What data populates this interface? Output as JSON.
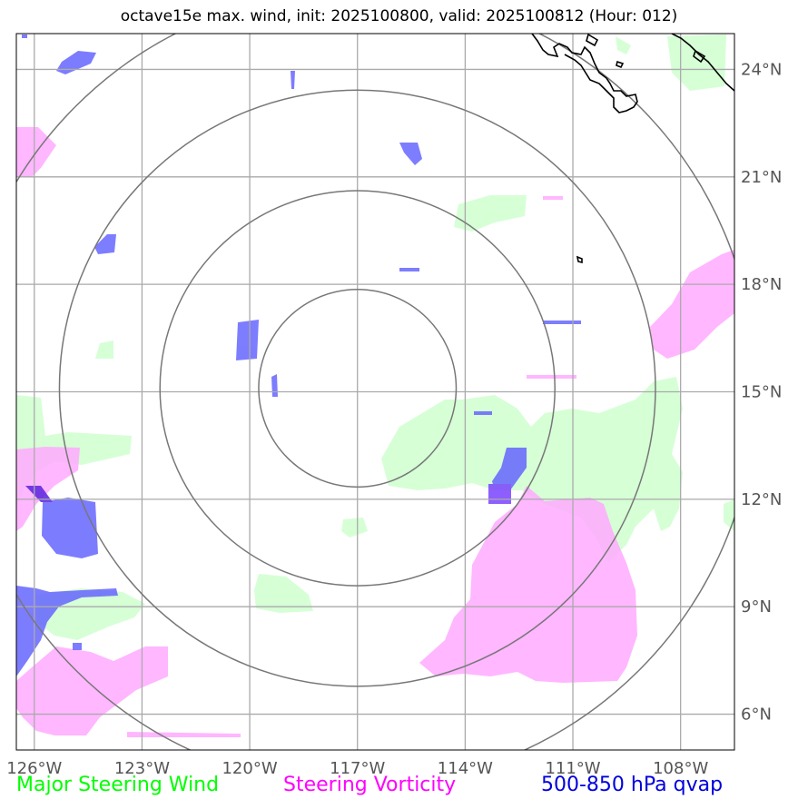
{
  "title": "octave15e max. wind, init: 2025100800, valid: 2025100812 (Hour: 012)",
  "map": {
    "lon_range": [
      -126.5,
      -106.5
    ],
    "lat_range": [
      5.0,
      25.0
    ],
    "center": {
      "lon": -117.0,
      "lat": 15.1
    },
    "range_rings_deg": [
      2.75,
      5.5,
      8.3,
      11.1
    ],
    "lon_ticks": [
      {
        "value": -126,
        "label": "126°W"
      },
      {
        "value": -123,
        "label": "123°W"
      },
      {
        "value": -120,
        "label": "120°W"
      },
      {
        "value": -117,
        "label": "117°W"
      },
      {
        "value": -114,
        "label": "114°W"
      },
      {
        "value": -111,
        "label": "111°W"
      },
      {
        "value": -108,
        "label": "108°W"
      }
    ],
    "lat_ticks": [
      {
        "value": 24,
        "label": "24°N"
      },
      {
        "value": 21,
        "label": "21°N"
      },
      {
        "value": 18,
        "label": "18°N"
      },
      {
        "value": 15,
        "label": "15°N"
      },
      {
        "value": 12,
        "label": "12°N"
      },
      {
        "value": 9,
        "label": "9°N"
      },
      {
        "value": 6,
        "label": "6°N"
      }
    ]
  },
  "legend": {
    "wind": {
      "label": "Major Steering Wind",
      "color": "#00ff00"
    },
    "vorticity": {
      "label": "Steering Vorticity",
      "color": "#ff00ff"
    },
    "qvap": {
      "label": "500-850 hPa qvap",
      "color": "#0000dd"
    }
  },
  "colors": {
    "wind_fill": "#ccffcc",
    "vort_fill": "#ffaaff",
    "qvap_fill": "#6666ff",
    "ring": "#777777",
    "grid": "#aaaaaa",
    "coast": "#000000"
  }
}
